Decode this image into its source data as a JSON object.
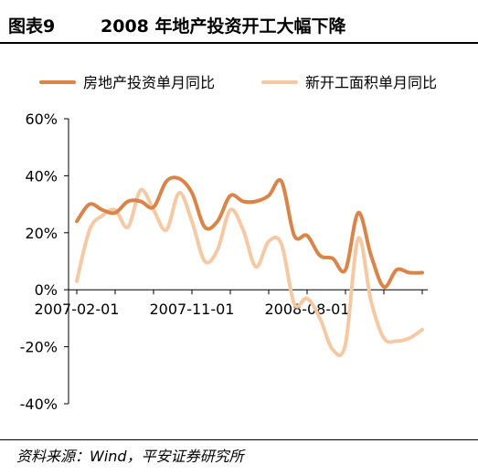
{
  "header": {
    "figure_no": "图表9",
    "title": "2008 年地产投资开工大幅下降"
  },
  "footer": {
    "source": "资料来源：Wind，平安证券研究所"
  },
  "chart_data": {
    "type": "line",
    "title": "2008 年地产投资开工大幅下降",
    "xlabel": "",
    "ylabel": "",
    "ylim": [
      -40,
      60
    ],
    "yticks": [
      -40,
      -20,
      0,
      20,
      40,
      60
    ],
    "ytick_labels": [
      "-40%",
      "-20%",
      "0%",
      "20%",
      "40%",
      "60%"
    ],
    "xtick_labels": [
      "2007-02-01",
      "2007-11-01",
      "2008-08-01"
    ],
    "x": [
      "2007-02-01",
      "2007-03-01",
      "2007-04-01",
      "2007-05-01",
      "2007-06-01",
      "2007-07-01",
      "2007-08-01",
      "2007-09-01",
      "2007-10-01",
      "2007-11-01",
      "2007-12-01",
      "2008-01-01",
      "2008-02-01",
      "2008-03-01",
      "2008-04-01",
      "2008-05-01",
      "2008-06-01",
      "2008-07-01",
      "2008-08-01",
      "2008-09-01",
      "2008-10-01",
      "2008-11-01",
      "2008-12-01",
      "2009-01-01",
      "2009-02-01",
      "2009-03-01",
      "2009-04-01",
      "2009-05-01"
    ],
    "series": [
      {
        "name": "房地产投资单月同比",
        "color": "#d9854a",
        "values": [
          24,
          30,
          28,
          27,
          31,
          31,
          29,
          38,
          39,
          34,
          22,
          24,
          33,
          31,
          31,
          33,
          38,
          19,
          19,
          12,
          11,
          7,
          27,
          12,
          1,
          7,
          6,
          6
        ]
      },
      {
        "name": "新开工面积单月同比",
        "color": "#f5c9a4",
        "values": [
          3,
          21,
          26,
          28,
          22,
          35,
          28,
          21,
          34,
          24,
          10,
          14,
          28,
          21,
          8,
          17,
          16,
          -5,
          -3,
          -10,
          -21,
          -19,
          18,
          -4,
          -17,
          -18,
          -17,
          -14
        ]
      }
    ],
    "legend": "top",
    "grid": false
  }
}
